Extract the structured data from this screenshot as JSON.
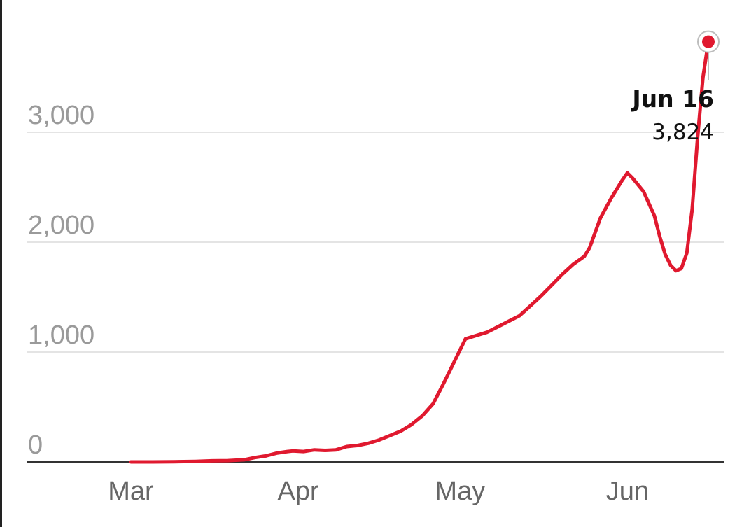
{
  "chart_data": {
    "type": "line",
    "title": "",
    "xlabel": "",
    "ylabel": "",
    "x_ticks": [
      {
        "label": "Mar",
        "date": "2020-03-01"
      },
      {
        "label": "Apr",
        "date": "2020-04-01"
      },
      {
        "label": "May",
        "date": "2020-05-01"
      },
      {
        "label": "Jun",
        "date": "2020-06-01"
      }
    ],
    "y_ticks": [
      {
        "label": "0",
        "value": 0
      },
      {
        "label": "1,000",
        "value": 1000
      },
      {
        "label": "2,000",
        "value": 2000
      },
      {
        "label": "3,000",
        "value": 3000
      }
    ],
    "ylim": [
      0,
      3824
    ],
    "grid": true,
    "line_color": "#e0192f",
    "gridline_color": "#e4e4e4",
    "axis_color": "#333333",
    "annotation": {
      "date_label": "Jun 16",
      "value_label": "3,824",
      "date": "2020-06-16",
      "value": 3824
    },
    "series": [
      {
        "points": [
          [
            "2020-03-01",
            0
          ],
          [
            "2020-03-05",
            0
          ],
          [
            "2020-03-09",
            2
          ],
          [
            "2020-03-13",
            5
          ],
          [
            "2020-03-16",
            10
          ],
          [
            "2020-03-19",
            12
          ],
          [
            "2020-03-22",
            20
          ],
          [
            "2020-03-24",
            40
          ],
          [
            "2020-03-26",
            55
          ],
          [
            "2020-03-28",
            80
          ],
          [
            "2020-03-30",
            95
          ],
          [
            "2020-03-31",
            100
          ],
          [
            "2020-04-02",
            95
          ],
          [
            "2020-04-04",
            110
          ],
          [
            "2020-04-06",
            105
          ],
          [
            "2020-04-08",
            110
          ],
          [
            "2020-04-10",
            140
          ],
          [
            "2020-04-12",
            150
          ],
          [
            "2020-04-14",
            170
          ],
          [
            "2020-04-16",
            200
          ],
          [
            "2020-04-18",
            240
          ],
          [
            "2020-04-20",
            280
          ],
          [
            "2020-04-22",
            340
          ],
          [
            "2020-04-24",
            420
          ],
          [
            "2020-04-26",
            530
          ],
          [
            "2020-04-28",
            720
          ],
          [
            "2020-04-30",
            920
          ],
          [
            "2020-05-02",
            1120
          ],
          [
            "2020-05-04",
            1150
          ],
          [
            "2020-05-06",
            1180
          ],
          [
            "2020-05-08",
            1230
          ],
          [
            "2020-05-10",
            1280
          ],
          [
            "2020-05-12",
            1330
          ],
          [
            "2020-05-14",
            1420
          ],
          [
            "2020-05-16",
            1510
          ],
          [
            "2020-05-18",
            1610
          ],
          [
            "2020-05-20",
            1710
          ],
          [
            "2020-05-22",
            1800
          ],
          [
            "2020-05-24",
            1870
          ],
          [
            "2020-05-25",
            1950
          ],
          [
            "2020-05-27",
            2220
          ],
          [
            "2020-05-29",
            2400
          ],
          [
            "2020-05-31",
            2560
          ],
          [
            "2020-06-01",
            2630
          ],
          [
            "2020-06-02",
            2580
          ],
          [
            "2020-06-04",
            2460
          ],
          [
            "2020-06-06",
            2240
          ],
          [
            "2020-06-07",
            2050
          ],
          [
            "2020-06-08",
            1890
          ],
          [
            "2020-06-09",
            1790
          ],
          [
            "2020-06-10",
            1740
          ],
          [
            "2020-06-11",
            1760
          ],
          [
            "2020-06-12",
            1900
          ],
          [
            "2020-06-13",
            2300
          ],
          [
            "2020-06-14",
            2950
          ],
          [
            "2020-06-15",
            3500
          ],
          [
            "2020-06-16",
            3824
          ]
        ]
      }
    ]
  }
}
